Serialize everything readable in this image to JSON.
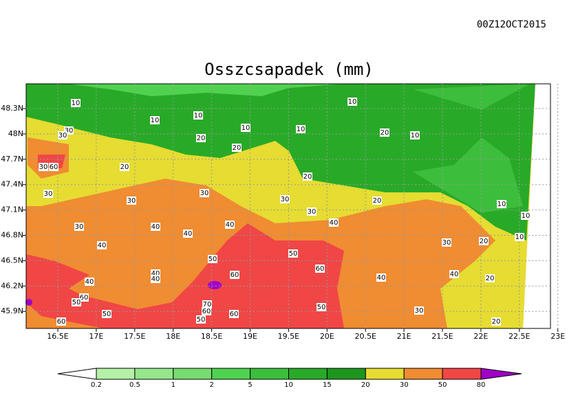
{
  "header": {
    "timestamp": "00Z12OCT2015",
    "title": "Osszcsapadek (mm)"
  },
  "map": {
    "lon_ticks": [
      "16.5E",
      "17E",
      "17.5E",
      "18E",
      "18.5E",
      "19E",
      "19.5E",
      "20E",
      "20.5E",
      "21E",
      "21.5E",
      "22E",
      "22.5E",
      "23E"
    ],
    "lat_ticks": [
      "48.3N",
      "48N",
      "47.7N",
      "47.4N",
      "47.1N",
      "46.8N",
      "46.5N",
      "46.2N",
      "45.9N"
    ],
    "contour_labels": [
      "10",
      "10",
      "10",
      "10",
      "10",
      "10",
      "10",
      "30",
      "30",
      "20",
      "20",
      "20",
      "20",
      "20",
      "20",
      "30",
      "60",
      "30",
      "30",
      "30",
      "30",
      "30",
      "30",
      "40",
      "40",
      "40",
      "40",
      "40",
      "50",
      "50",
      "60",
      "60",
      "40",
      "40",
      "40",
      "60",
      "50",
      "50",
      "70",
      "60",
      "60",
      "50",
      "60",
      "50",
      "40",
      "40",
      "30",
      "30",
      "20",
      "20",
      "20",
      "10",
      "10",
      "10"
    ]
  },
  "colorbar": {
    "labels": [
      "0.2",
      "0.5",
      "1",
      "2",
      "5",
      "10",
      "15",
      "20",
      "30",
      "50",
      "80"
    ]
  }
}
